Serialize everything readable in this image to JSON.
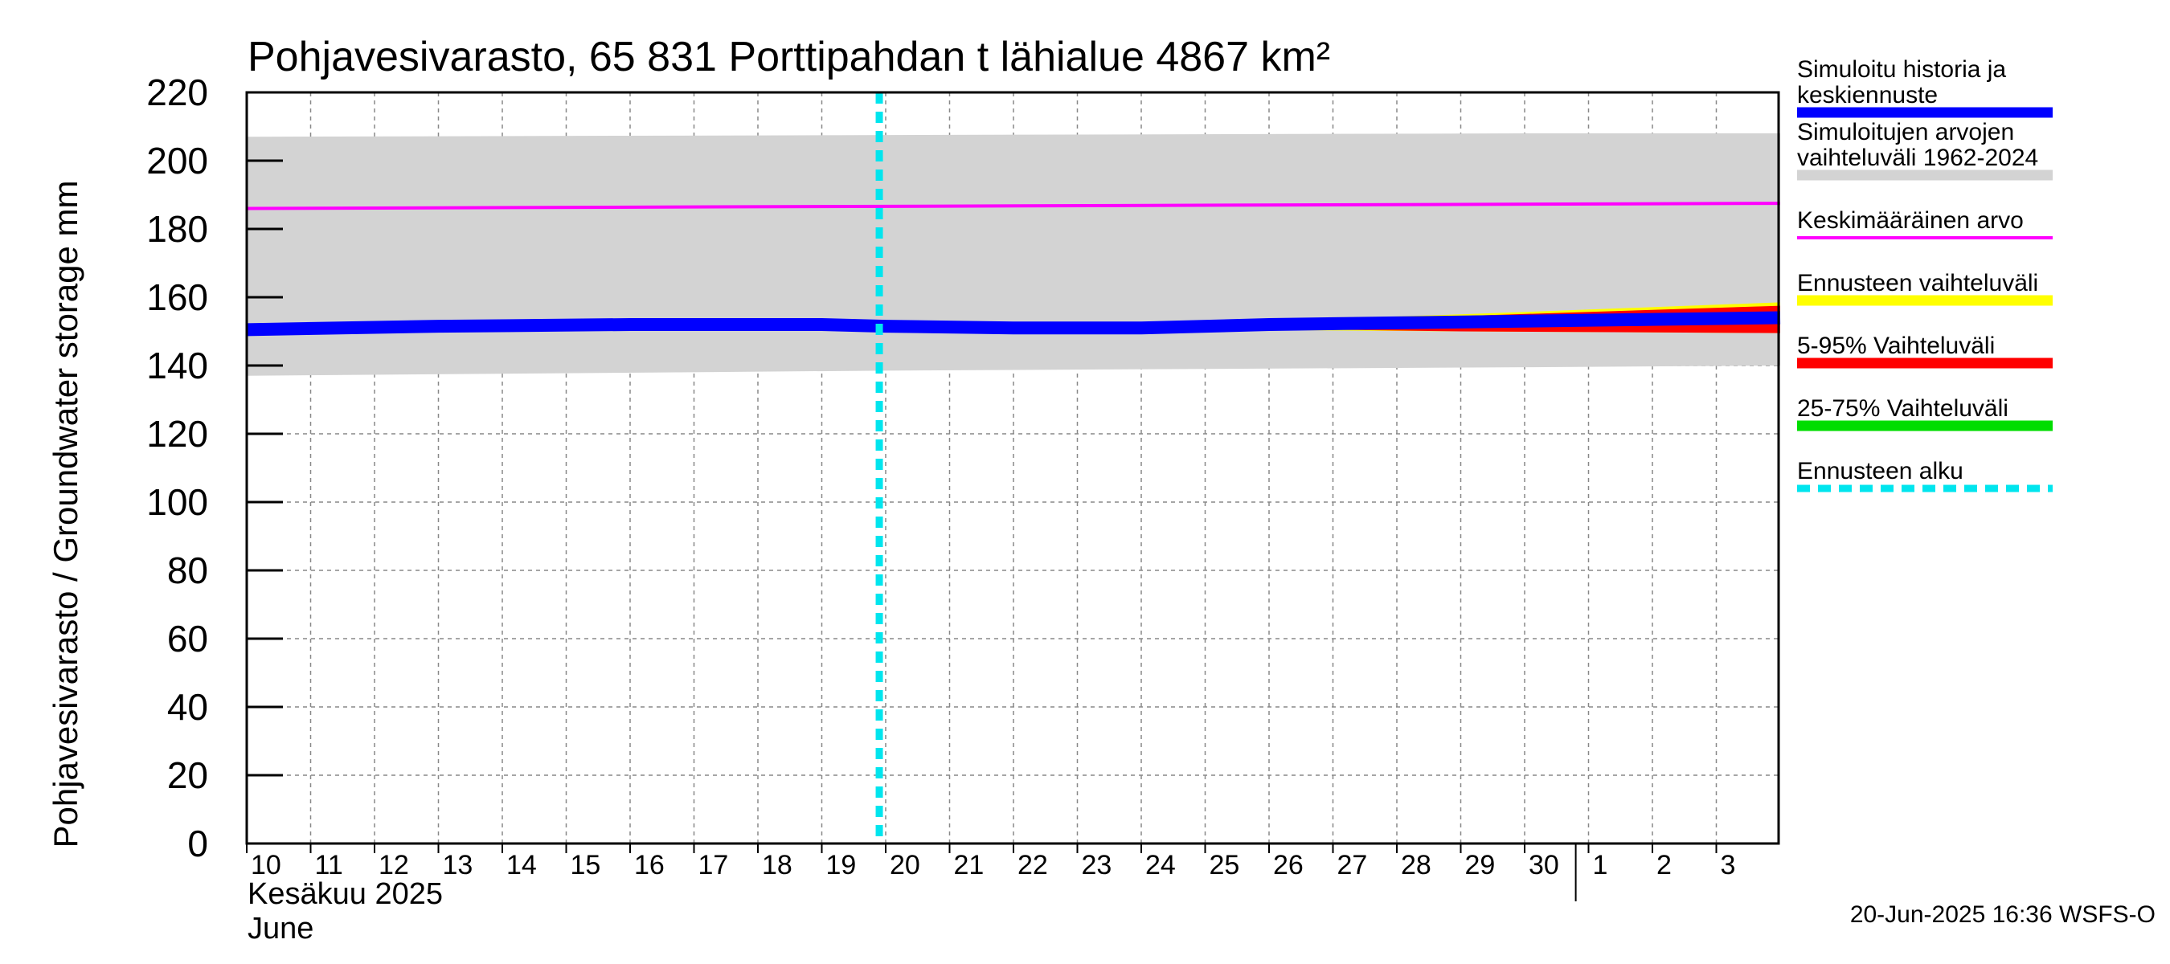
{
  "chart_data": {
    "type": "area",
    "title": "Pohjavesivarasto, 65 831 Porttipahdan t lähialue 4867 km²",
    "ylabel": "Pohjavesivarasto / Groundwater storage   mm",
    "ylim": [
      0,
      220
    ],
    "yticks": [
      0,
      20,
      40,
      60,
      80,
      100,
      120,
      140,
      160,
      180,
      200,
      220
    ],
    "x_day_range": [
      0,
      24
    ],
    "x_ticks": [
      {
        "label": "10",
        "day": 0
      },
      {
        "label": "11",
        "day": 1
      },
      {
        "label": "12",
        "day": 2
      },
      {
        "label": "13",
        "day": 3
      },
      {
        "label": "14",
        "day": 4
      },
      {
        "label": "15",
        "day": 5
      },
      {
        "label": "16",
        "day": 6
      },
      {
        "label": "17",
        "day": 7
      },
      {
        "label": "18",
        "day": 8
      },
      {
        "label": "19",
        "day": 9
      },
      {
        "label": "20",
        "day": 10
      },
      {
        "label": "21",
        "day": 11
      },
      {
        "label": "22",
        "day": 12
      },
      {
        "label": "23",
        "day": 13
      },
      {
        "label": "24",
        "day": 14
      },
      {
        "label": "25",
        "day": 15
      },
      {
        "label": "26",
        "day": 16
      },
      {
        "label": "27",
        "day": 17
      },
      {
        "label": "28",
        "day": 18
      },
      {
        "label": "29",
        "day": 19
      },
      {
        "label": "30",
        "day": 20
      },
      {
        "label": "1",
        "day": 21
      },
      {
        "label": "2",
        "day": 22
      },
      {
        "label": "3",
        "day": 23
      }
    ],
    "month_label_fi": "Kesäkuu  2025",
    "month_label_en": "June",
    "month_boundary_day": 20.8,
    "forecast_start_day": 9.9,
    "series": [
      {
        "name": "Simuloitujen arvojen vaihteluväli 1962-2024",
        "kind": "band",
        "color": "#d3d3d3",
        "x": [
          0,
          10,
          20,
          24
        ],
        "low": [
          137,
          138.5,
          139.5,
          140
        ],
        "high": [
          207,
          207.5,
          208,
          208
        ]
      },
      {
        "name": "Ennusteen vaihteluväli",
        "kind": "band",
        "color": "#ffff00",
        "x": [
          15,
          19,
          24
        ],
        "low": [
          150.5,
          150,
          149.5
        ],
        "high": [
          152.5,
          155,
          158.5
        ]
      },
      {
        "name": "5-95% Vaihteluväli",
        "kind": "band",
        "color": "#ff0000",
        "x": [
          15,
          19,
          24
        ],
        "low": [
          151,
          150,
          149.5
        ],
        "high": [
          152.5,
          154.5,
          157.5
        ]
      },
      {
        "name": "25-75% Vaihteluväli",
        "kind": "band",
        "color": "#00dd00",
        "x": [
          15,
          19,
          24
        ],
        "low": [
          151.5,
          152,
          153
        ],
        "high": [
          152,
          153,
          154.5
        ]
      },
      {
        "name": "Keskimääräinen arvo",
        "kind": "line",
        "color": "#ff00ff",
        "x": [
          0,
          24
        ],
        "y": [
          186,
          187.5
        ]
      },
      {
        "name": "Simuloitu historia ja keskiennuste",
        "kind": "line",
        "color": "#0000ff",
        "x": [
          0,
          3,
          6,
          9,
          10,
          12,
          14,
          16,
          18,
          20,
          22,
          24
        ],
        "y": [
          150.5,
          151.5,
          152,
          152,
          151.5,
          151,
          151,
          152,
          152.5,
          153,
          153.5,
          154
        ]
      }
    ]
  },
  "legend": [
    {
      "text": "Simuloitu historia ja keskiennuste",
      "color": "#0000ff",
      "style": "solid"
    },
    {
      "text": "Simuloitujen arvojen vaihteluväli 1962-2024",
      "color": "#d3d3d3",
      "style": "solid"
    },
    {
      "text": "Keskimääräinen arvo",
      "color": "#ff00ff",
      "style": "thin"
    },
    {
      "text": "Ennusteen vaihteluväli",
      "color": "#ffff00",
      "style": "solid"
    },
    {
      "text": "5-95% Vaihteluväli",
      "color": "#ff0000",
      "style": "solid"
    },
    {
      "text": "25-75% Vaihteluväli",
      "color": "#00dd00",
      "style": "solid"
    },
    {
      "text": "Ennusteen alku",
      "color": "#00e5ee",
      "style": "dashed"
    }
  ],
  "footer": "20-Jun-2025 16:36 WSFS-O"
}
